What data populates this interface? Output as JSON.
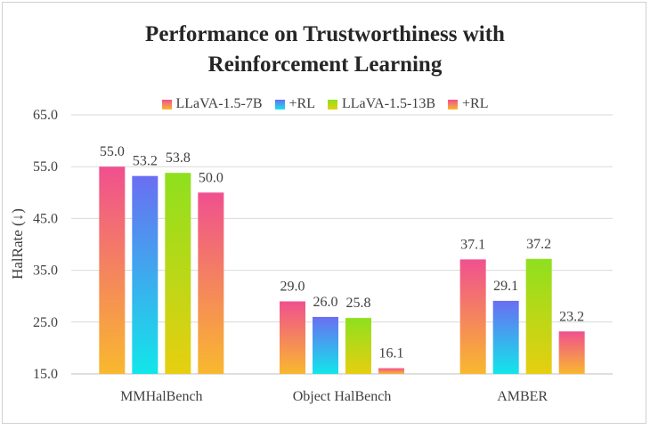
{
  "chart_data": {
    "type": "bar",
    "title_lines": [
      "Performance on Trustworthiness with",
      "Reinforcement Learning"
    ],
    "xlabel": "",
    "ylabel": "HalRate (↓)",
    "ylim": [
      15.0,
      65.0
    ],
    "yticks": [
      "15.0",
      "25.0",
      "35.0",
      "45.0",
      "55.0",
      "65.0"
    ],
    "grid": true,
    "legend_position": "top",
    "categories": [
      "MMHalBench",
      "Object HalBench",
      "AMBER"
    ],
    "series": [
      {
        "name": "LLaVA-1.5-7B",
        "values": [
          55.0,
          29.0,
          37.1
        ],
        "labels": [
          "55.0",
          "29.0",
          "37.1"
        ],
        "color_top": "#f0508f",
        "color_bottom": "#f9b82e"
      },
      {
        "name": "+RL",
        "values": [
          53.2,
          26.0,
          29.1
        ],
        "labels": [
          "53.2",
          "26.0",
          "29.1"
        ],
        "color_top": "#6a6ef2",
        "color_bottom": "#12e6ea"
      },
      {
        "name": "LLaVA-1.5-13B",
        "values": [
          53.8,
          25.8,
          37.2
        ],
        "labels": [
          "53.8",
          "25.8",
          "37.2"
        ],
        "color_top": "#8ee01e",
        "color_bottom": "#e6cf10"
      },
      {
        "name": "+RL",
        "values": [
          50.0,
          16.1,
          23.2
        ],
        "labels": [
          "50.0",
          "16.1",
          "23.2"
        ],
        "color_top": "#f0508f",
        "color_bottom": "#f9b82e"
      }
    ]
  }
}
